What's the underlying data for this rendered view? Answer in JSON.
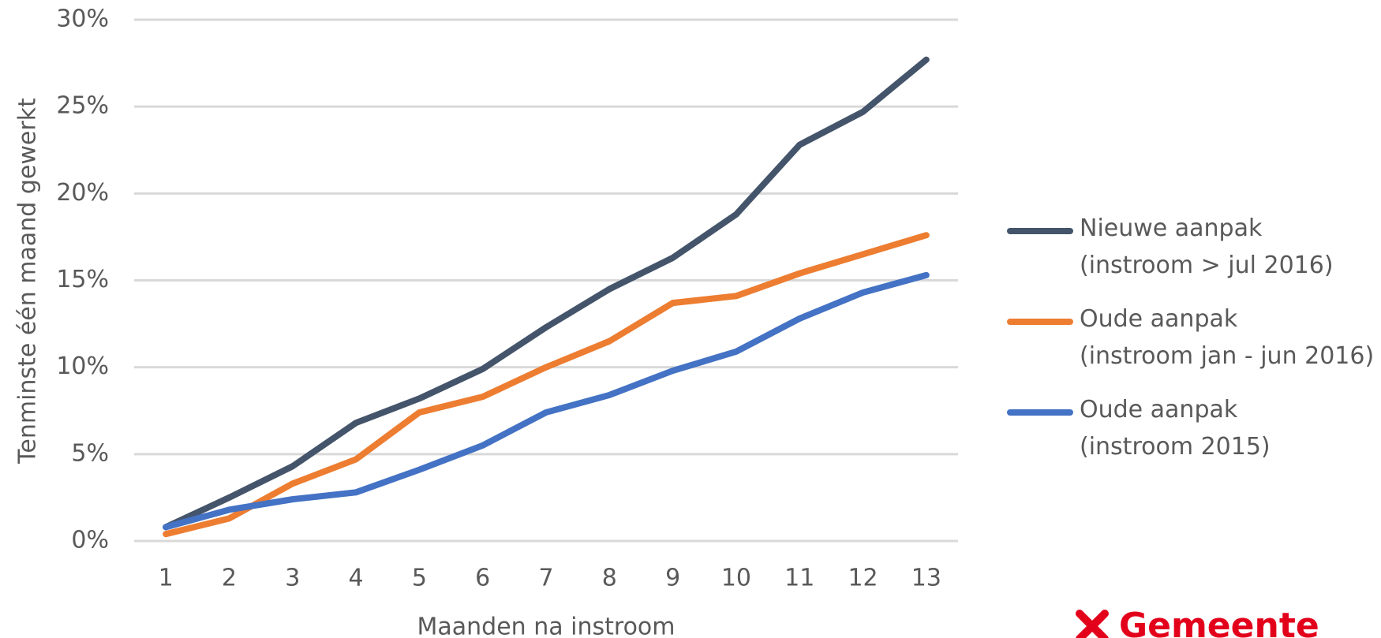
{
  "chart_data": {
    "type": "line",
    "y_label": "Tenminste één maand gewerkt",
    "x_label": "Maanden na instroom",
    "categories": [
      "1",
      "2",
      "3",
      "4",
      "5",
      "6",
      "7",
      "8",
      "9",
      "10",
      "11",
      "12",
      "13"
    ],
    "series": [
      {
        "name": "Nieuwe aanpak\n(instroom > jul 2016)",
        "color": "#44546a",
        "values": [
          0.8,
          2.5,
          4.3,
          6.8,
          8.2,
          9.9,
          12.3,
          14.5,
          16.3,
          18.8,
          22.8,
          24.7,
          27.7
        ]
      },
      {
        "name": "Oude aanpak\n(instroom jan - jun 2016)",
        "color": "#ed7d31",
        "values": [
          0.4,
          1.3,
          3.3,
          4.7,
          7.4,
          8.3,
          10.0,
          11.5,
          13.7,
          14.1,
          15.4,
          16.5,
          17.6
        ]
      },
      {
        "name": "Oude aanpak\n(instroom 2015)",
        "color": "#4472c4",
        "values": [
          0.8,
          1.8,
          2.4,
          2.8,
          4.1,
          5.5,
          7.4,
          8.4,
          9.8,
          10.9,
          12.8,
          14.3,
          15.3
        ]
      }
    ],
    "ylim": [
      0,
      30
    ],
    "yticks": [
      {
        "value": 0,
        "label": "0%"
      },
      {
        "value": 5,
        "label": "5%"
      },
      {
        "value": 10,
        "label": "10%"
      },
      {
        "value": 15,
        "label": "15%"
      },
      {
        "value": 20,
        "label": "20%"
      },
      {
        "value": 25,
        "label": "25%"
      },
      {
        "value": 30,
        "label": "30%"
      }
    ],
    "grid": true,
    "legend": "right"
  },
  "logo": "Gemeente"
}
